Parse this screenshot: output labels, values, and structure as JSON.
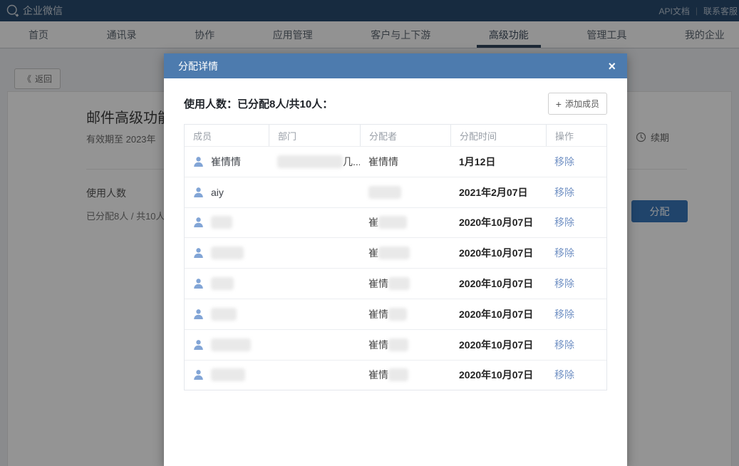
{
  "topbar": {
    "logo_text": "企业微信",
    "links": [
      "API文档",
      "联系客服"
    ],
    "separator": "|"
  },
  "nav": {
    "items": [
      {
        "name": "home",
        "label": "首页",
        "active": false
      },
      {
        "name": "contacts",
        "label": "通讯录",
        "active": false
      },
      {
        "name": "collaboration",
        "label": "协作",
        "active": false
      },
      {
        "name": "app-management",
        "label": "应用管理",
        "active": false
      },
      {
        "name": "customers-upstream-downstream",
        "label": "客户与上下游",
        "active": false
      },
      {
        "name": "advanced-features",
        "label": "高级功能",
        "active": true
      },
      {
        "name": "management-tools",
        "label": "管理工具",
        "active": false
      },
      {
        "name": "my-enterprise",
        "label": "我的企业",
        "active": false
      }
    ]
  },
  "page": {
    "back_icon": "《",
    "back_label": "返回",
    "card": {
      "title": "邮件高级功能",
      "validity": "有效期至 2023年",
      "renew_label": "续期",
      "usage_label": "使用人数",
      "usage_value": "已分配8人 / 共10人",
      "allocate_label": "分配"
    }
  },
  "modal": {
    "title": "分配详情",
    "close_icon": "×",
    "summary_prefix": "使用人数：",
    "summary_value": "已分配8人/共10人：",
    "add_member_icon": "+",
    "add_member_label": "添加成员",
    "table": {
      "headers": [
        "成员",
        "部门",
        "分配者",
        "分配时间",
        "操作"
      ],
      "remove_label": "移除",
      "rows": [
        {
          "member": "崔情情",
          "member_blur": 0,
          "dept_blur": 92,
          "dept_suffix": "几...",
          "allocator": "崔情情",
          "allocator_blur": 0,
          "time": "1月12日"
        },
        {
          "member": "aiy",
          "member_blur": 0,
          "dept_blur": 0,
          "dept_suffix": "",
          "allocator": "",
          "allocator_blur": 46,
          "time": "2021年2月07日"
        },
        {
          "member": "",
          "member_blur": 30,
          "dept_blur": 0,
          "dept_suffix": "",
          "allocator": "崔",
          "allocator_blur": 40,
          "time": "2020年10月07日"
        },
        {
          "member": "",
          "member_blur": 46,
          "dept_blur": 0,
          "dept_suffix": "",
          "allocator": "崔",
          "allocator_blur": 44,
          "time": "2020年10月07日"
        },
        {
          "member": "",
          "member_blur": 32,
          "dept_blur": 0,
          "dept_suffix": "",
          "allocator": "崔情",
          "allocator_blur": 30,
          "time": "2020年10月07日"
        },
        {
          "member": "",
          "member_blur": 36,
          "dept_blur": 0,
          "dept_suffix": "",
          "allocator": "崔情",
          "allocator_blur": 26,
          "time": "2020年10月07日"
        },
        {
          "member": "",
          "member_blur": 56,
          "dept_blur": 0,
          "dept_suffix": "",
          "allocator": "崔情",
          "allocator_blur": 28,
          "time": "2020年10月07日"
        },
        {
          "member": "",
          "member_blur": 48,
          "dept_blur": 0,
          "dept_suffix": "",
          "allocator": "崔情",
          "allocator_blur": 28,
          "time": "2020年10月07日"
        }
      ]
    }
  },
  "colors": {
    "c-topbar": "#294a6e",
    "c-modal-header": "#4d7bae",
    "c-link": "#7191c4",
    "c-btn": "#3875b9",
    "c-person": "#82a5d6",
    "c-underline": "#33475e"
  }
}
